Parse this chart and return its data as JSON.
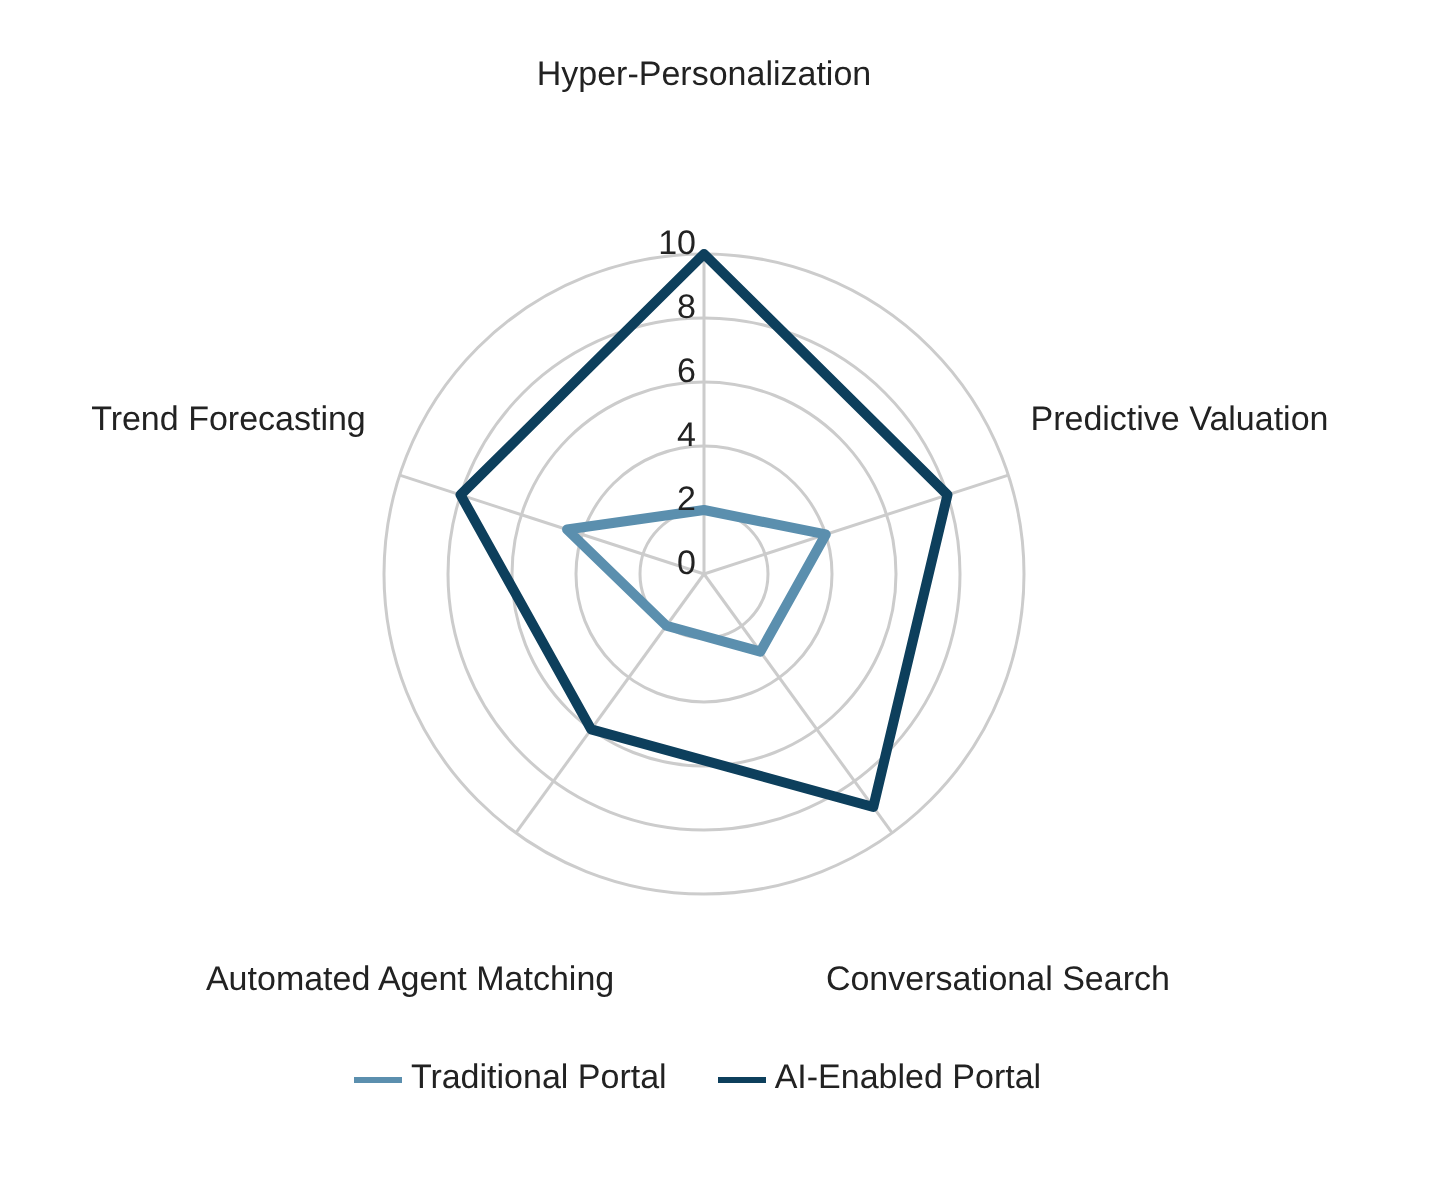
{
  "chart_data": {
    "type": "radar",
    "categories": [
      "Hyper-Personalization",
      "Predictive Valuation",
      "Conversational Search",
      "Automated Agent Matching",
      "Trend Forecasting"
    ],
    "series": [
      {
        "name": "Traditional Portal",
        "color": "#5b8fae",
        "values": [
          2,
          4,
          3,
          2,
          4.5
        ]
      },
      {
        "name": "AI-Enabled Portal",
        "color": "#0d3f5c",
        "values": [
          10,
          8,
          9,
          6,
          8
        ]
      }
    ],
    "ylim": [
      0,
      10
    ],
    "yticks": [
      0,
      2,
      4,
      6,
      8,
      10
    ],
    "grid": true,
    "legend": "bottom"
  }
}
